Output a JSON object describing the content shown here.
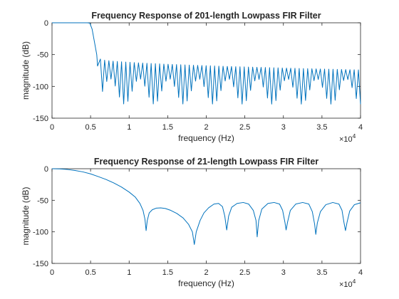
{
  "chart_data": [
    {
      "type": "line",
      "title": "Frequency Response of 201-length Lowpass FIR Filter",
      "xlabel": "frequency (Hz)",
      "ylabel": "magnitude (dB)",
      "xlim": [
        0,
        40000
      ],
      "ylim": [
        -150,
        0
      ],
      "x_exponent_label": "×10",
      "x_exponent_power": "4",
      "xticks": [
        {
          "value": 0,
          "label": "0"
        },
        {
          "value": 5000,
          "label": "0.5"
        },
        {
          "value": 10000,
          "label": "1"
        },
        {
          "value": 15000,
          "label": "1.5"
        },
        {
          "value": 20000,
          "label": "2"
        },
        {
          "value": 25000,
          "label": "2.5"
        },
        {
          "value": 30000,
          "label": "3"
        },
        {
          "value": 35000,
          "label": "3.5"
        },
        {
          "value": 40000,
          "label": "4"
        }
      ],
      "yticks": [
        {
          "value": 0,
          "label": "0"
        },
        {
          "value": -50,
          "label": "-50"
        },
        {
          "value": -100,
          "label": "-100"
        },
        {
          "value": -150,
          "label": "-150"
        }
      ],
      "grid": false,
      "color": "#0072BD",
      "series": [
        {
          "points": [
            [
              0,
              0
            ],
            [
              4600,
              0
            ],
            [
              4900,
              -0.5
            ],
            [
              5200,
              -10
            ],
            [
              5500,
              -30
            ],
            [
              5800,
              -50
            ],
            [
              5850,
              -58
            ],
            [
              5900,
              -68
            ]
          ],
          "sidelobes": {
            "start": 6000,
            "end": 40000,
            "count": 62,
            "peak_start": -57,
            "peak_end": -74,
            "null_min": -128,
            "null_max": -88
          }
        }
      ]
    },
    {
      "type": "line",
      "title": "Frequency Response of 21-length Lowpass FIR Filter",
      "xlabel": "frequency (Hz)",
      "ylabel": "magnitude (dB)",
      "xlim": [
        0,
        40000
      ],
      "ylim": [
        -150,
        0
      ],
      "x_exponent_label": "×10",
      "x_exponent_power": "4",
      "xticks": [
        {
          "value": 0,
          "label": "0"
        },
        {
          "value": 5000,
          "label": "0.5"
        },
        {
          "value": 10000,
          "label": "1"
        },
        {
          "value": 15000,
          "label": "1.5"
        },
        {
          "value": 20000,
          "label": "2"
        },
        {
          "value": 25000,
          "label": "2.5"
        },
        {
          "value": 30000,
          "label": "3"
        },
        {
          "value": 35000,
          "label": "3.5"
        },
        {
          "value": 40000,
          "label": "4"
        }
      ],
      "yticks": [
        {
          "value": 0,
          "label": "0"
        },
        {
          "value": -50,
          "label": "-50"
        },
        {
          "value": -100,
          "label": "-100"
        },
        {
          "value": -150,
          "label": "-150"
        }
      ],
      "grid": false,
      "color": "#0072BD",
      "series": [
        {
          "points": [
            [
              0,
              0
            ],
            [
              1000,
              -0.3
            ],
            [
              2000,
              -1.2
            ],
            [
              3000,
              -2.8
            ],
            [
              4000,
              -5
            ],
            [
              5000,
              -8.2
            ],
            [
              6000,
              -12.5
            ],
            [
              7000,
              -17
            ],
            [
              8000,
              -22.5
            ],
            [
              9000,
              -29
            ],
            [
              10000,
              -37
            ],
            [
              10800,
              -45
            ],
            [
              11400,
              -55
            ],
            [
              11800,
              -66
            ],
            [
              12050,
              -80
            ],
            [
              12200,
              -98
            ],
            [
              12350,
              -82
            ],
            [
              12600,
              -70
            ],
            [
              13000,
              -65
            ],
            [
              13500,
              -62.5
            ],
            [
              14100,
              -62
            ],
            [
              14700,
              -63
            ],
            [
              15400,
              -66
            ],
            [
              16200,
              -71
            ],
            [
              17000,
              -78
            ],
            [
              17700,
              -88
            ],
            [
              18200,
              -100
            ],
            [
              18450,
              -120
            ],
            [
              18700,
              -100
            ],
            [
              19200,
              -82
            ],
            [
              19700,
              -70
            ],
            [
              20300,
              -62
            ],
            [
              21000,
              -56
            ],
            [
              21600,
              -55
            ],
            [
              22100,
              -60
            ],
            [
              22400,
              -75
            ],
            [
              22650,
              -97
            ],
            [
              22900,
              -75
            ],
            [
              23300,
              -61
            ],
            [
              24000,
              -55
            ],
            [
              24800,
              -53.5
            ],
            [
              25500,
              -56
            ],
            [
              26100,
              -66
            ],
            [
              26450,
              -82
            ],
            [
              26600,
              -108
            ],
            [
              26800,
              -82
            ],
            [
              27200,
              -64
            ],
            [
              28000,
              -55
            ],
            [
              28800,
              -53.5
            ],
            [
              29500,
              -56
            ],
            [
              29900,
              -66
            ],
            [
              30200,
              -85
            ],
            [
              30350,
              -97
            ],
            [
              30550,
              -84
            ],
            [
              30900,
              -66
            ],
            [
              31600,
              -56
            ],
            [
              32500,
              -53.5
            ],
            [
              33300,
              -56
            ],
            [
              33750,
              -68
            ],
            [
              34050,
              -88
            ],
            [
              34200,
              -104
            ],
            [
              34400,
              -86
            ],
            [
              34800,
              -68
            ],
            [
              35500,
              -57
            ],
            [
              36400,
              -53.5
            ],
            [
              37200,
              -56
            ],
            [
              37600,
              -66
            ],
            [
              37850,
              -85
            ],
            [
              38050,
              -98
            ],
            [
              38250,
              -85
            ],
            [
              38600,
              -67
            ],
            [
              39200,
              -57
            ],
            [
              40000,
              -54
            ]
          ]
        }
      ]
    }
  ]
}
